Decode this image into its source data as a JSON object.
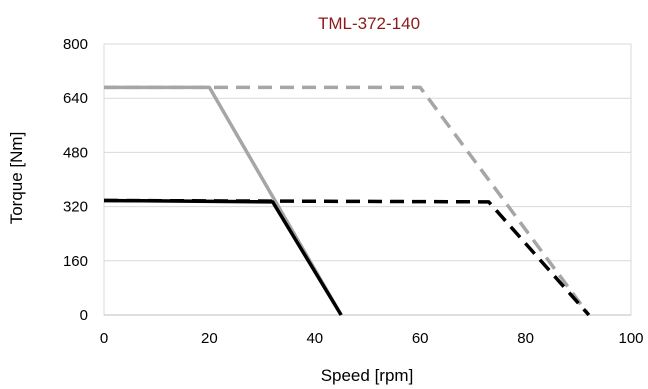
{
  "chart_data": {
    "type": "line",
    "title": "TML-372-140",
    "xlabel": "Speed [rpm]",
    "ylabel": "Torque [Nm]",
    "xlim": [
      0,
      100
    ],
    "ylim": [
      0,
      800
    ],
    "xticks": [
      "0",
      "20",
      "40",
      "60",
      "80",
      "100"
    ],
    "yticks": [
      "0",
      "160",
      "320",
      "480",
      "640",
      "800"
    ],
    "grid": "horizontal",
    "legend": "none",
    "series": [
      {
        "color": "#a6a6a6",
        "style": "solid",
        "x": [
          0,
          20,
          45
        ],
        "y": [
          672,
          672,
          0
        ]
      },
      {
        "color": "#a6a6a6",
        "style": "dashed",
        "x": [
          0,
          60,
          92
        ],
        "y": [
          672,
          672,
          0
        ]
      },
      {
        "color": "#000000",
        "style": "solid",
        "x": [
          0,
          32,
          45
        ],
        "y": [
          338,
          334,
          0
        ]
      },
      {
        "color": "#000000",
        "style": "dashed",
        "x": [
          0,
          73,
          92
        ],
        "y": [
          338,
          334,
          0
        ]
      }
    ]
  }
}
